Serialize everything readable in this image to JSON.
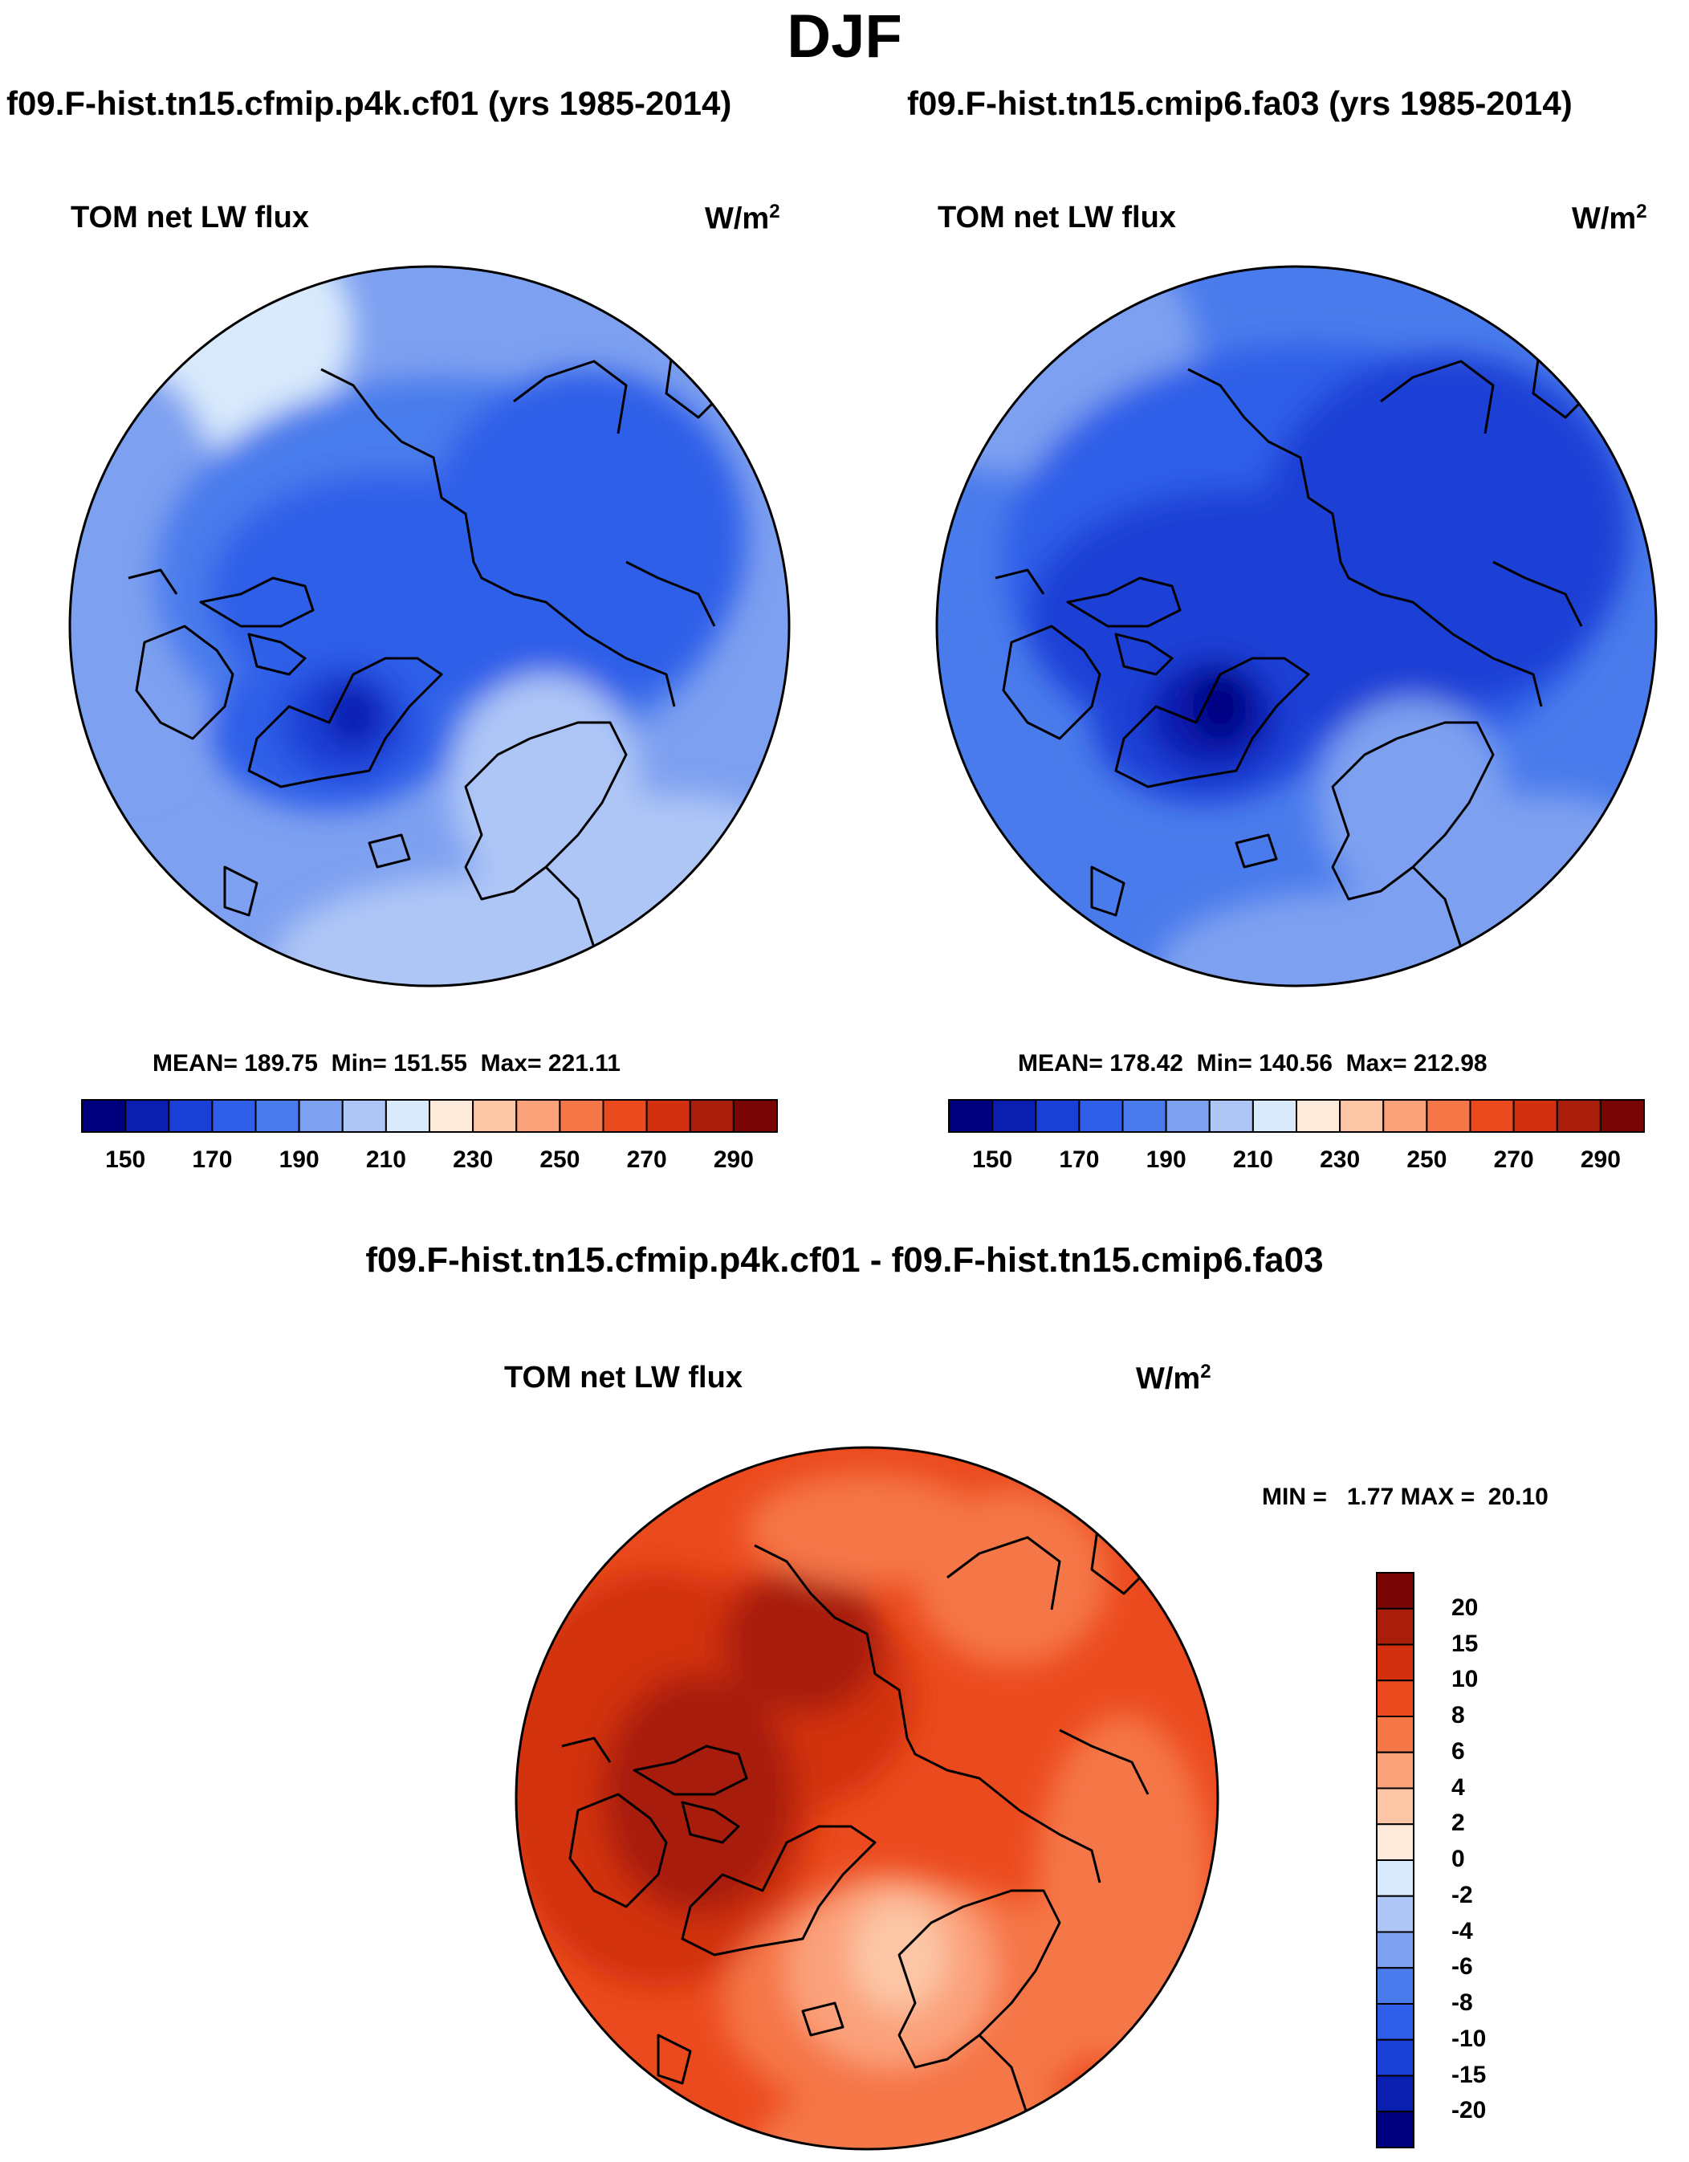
{
  "figure": {
    "title": "DJF",
    "variable": "TOM net LW flux",
    "units": "W/m",
    "units_exp": "2"
  },
  "panels": [
    {
      "case": "f09.F-hist.tn15.cfmip.p4k.cf01 (yrs 1985-2014)",
      "mean_label": "MEAN=",
      "mean": "189.75",
      "min_label": "Min=",
      "min": "151.55",
      "max_label": "Max=",
      "max": "221.11"
    },
    {
      "case": "f09.F-hist.tn15.cmip6.fa03 (yrs 1985-2014)",
      "mean_label": "MEAN=",
      "mean": "178.42",
      "min_label": "Min=",
      "min": "140.56",
      "max_label": "Max=",
      "max": "212.98"
    }
  ],
  "colorbar": {
    "colors": [
      "#00007f",
      "#0a1fb0",
      "#1a3fd6",
      "#2f5ee8",
      "#4a7bec",
      "#7ea0f0",
      "#aec6f6",
      "#d9eafc",
      "#fdeadb",
      "#fcc6a6",
      "#fba27b",
      "#f57646",
      "#eb4a1e",
      "#d2300f",
      "#a81e0a",
      "#7a0505"
    ],
    "labels": [
      "150",
      "170",
      "190",
      "210",
      "230",
      "250",
      "270",
      "290"
    ]
  },
  "difference": {
    "title": "f09.F-hist.tn15.cfmip.p4k.cf01 - f09.F-hist.tn15.cmip6.fa03",
    "minmax": "MIN =   1.77 MAX =  20.10",
    "colorbar_colors_top_to_bottom": [
      "#7a0505",
      "#a81e0a",
      "#d2300f",
      "#eb4a1e",
      "#f57646",
      "#fba27b",
      "#fcc6a6",
      "#fdeadb",
      "#d9eafc",
      "#aec6f6",
      "#7ea0f0",
      "#4a7bec",
      "#2f5ee8",
      "#1a3fd6",
      "#0a1fb0",
      "#00007f"
    ],
    "labels": [
      "20",
      "15",
      "10",
      "8",
      "6",
      "4",
      "2",
      "0",
      "-2",
      "-4",
      "-6",
      "-8",
      "-10",
      "-15",
      "-20"
    ]
  }
}
